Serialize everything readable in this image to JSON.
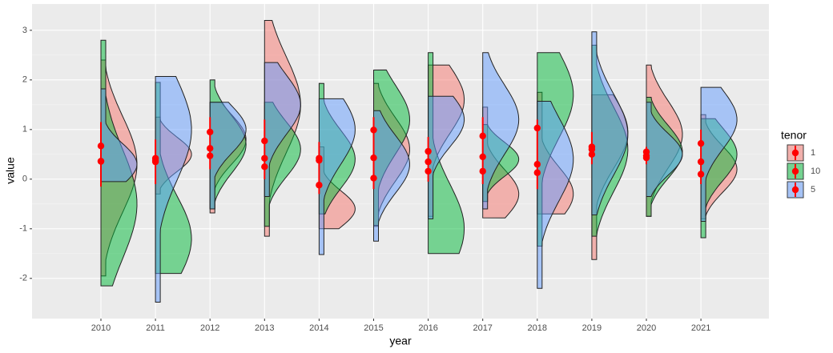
{
  "chart_data": {
    "type": "half-violin",
    "x_label": "year",
    "y_label": "value",
    "legend_title": "tenor",
    "categories": [
      "2010",
      "2011",
      "2012",
      "2013",
      "2014",
      "2015",
      "2016",
      "2017",
      "2018",
      "2019",
      "2020",
      "2021"
    ],
    "ylim": [
      -2.81,
      3.53
    ],
    "yticks": [
      -2,
      -1,
      0,
      1,
      2,
      3
    ],
    "grid": true,
    "point_color": "#ff0000",
    "interval_low": [
      -0.15,
      -0.1,
      0.2,
      0,
      -0.3,
      -0.2,
      -0.05,
      -0.1,
      -0.2,
      0.3,
      0.3,
      -0.1
    ],
    "interval_high": [
      1.15,
      0.8,
      1.25,
      1.2,
      0.75,
      1.25,
      0.85,
      1.25,
      1.2,
      0.95,
      0.65,
      1.0
    ],
    "series": [
      {
        "name": "1",
        "color": "#F8766D",
        "values": [
          0.67,
          0.42,
          0.95,
          0.77,
          0.42,
          0.99,
          0.56,
          0.87,
          1.03,
          0.65,
          0.55,
          0.72
        ],
        "low": [
          -1.95,
          -0.3,
          -0.68,
          -1.15,
          -1.0,
          -0.95,
          -0.75,
          -0.78,
          -0.7,
          -1.62,
          -0.75,
          -0.8
        ],
        "high": [
          2.4,
          1.25,
          1.55,
          3.2,
          0.65,
          1.93,
          2.3,
          1.45,
          1.75,
          1.7,
          2.3,
          1.3
        ],
        "mode": [
          0.3,
          0.5,
          0.8,
          1.5,
          -0.6,
          0.6,
          1.6,
          -0.3,
          -0.3,
          0.95,
          0.9,
          0.2
        ]
      },
      {
        "name": "10",
        "color": "#00BA38",
        "values": [
          0.36,
          0.35,
          0.62,
          0.42,
          0.38,
          0.43,
          0.35,
          0.45,
          0.3,
          0.6,
          0.47,
          0.35
        ],
        "low": [
          -2.15,
          -1.9,
          -0.6,
          -0.95,
          -0.7,
          -0.93,
          -1.5,
          -0.45,
          -1.35,
          -1.15,
          -0.75,
          -1.18
        ],
        "high": [
          2.8,
          1.95,
          2.0,
          1.55,
          1.93,
          2.2,
          2.55,
          1.1,
          2.55,
          2.7,
          1.65,
          1.22
        ],
        "mode": [
          -0.5,
          -1.2,
          0.7,
          0.6,
          0.4,
          1.2,
          -1,
          0.4,
          1.7,
          0.6,
          0.55,
          0.5
        ]
      },
      {
        "name": "5",
        "color": "#619CFF",
        "values": [
          0.36,
          0.38,
          0.47,
          0.25,
          -0.12,
          0.02,
          0.16,
          0.16,
          0.13,
          0.5,
          0.43,
          0.1
        ],
        "low": [
          -0.05,
          -2.48,
          -0.6,
          -0.35,
          -1.52,
          -1.25,
          -0.8,
          -0.6,
          -2.2,
          -0.72,
          -0.35,
          -0.85
        ],
        "high": [
          1.82,
          2.07,
          1.55,
          2.35,
          1.62,
          1.38,
          1.67,
          2.55,
          1.57,
          2.97,
          1.55,
          1.85
        ],
        "mode": [
          0.3,
          1.0,
          1.0,
          1.5,
          1.0,
          0.3,
          1.2,
          1.2,
          0.4,
          0.9,
          0.5,
          1.2
        ]
      }
    ]
  }
}
